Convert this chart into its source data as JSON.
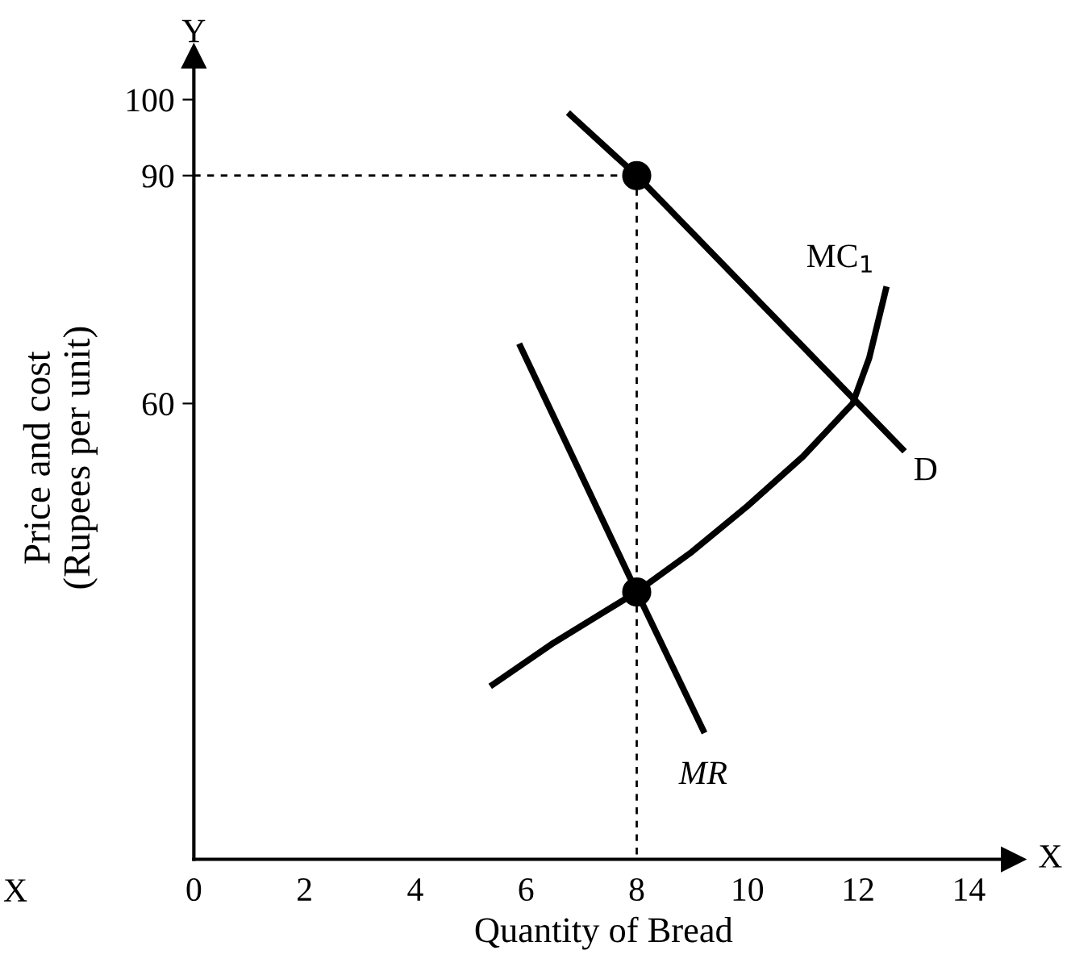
{
  "chart_data": {
    "type": "line",
    "xlabel": "Quantity of Bread",
    "ylabel": "Price and cost\n(Rupees per unit)",
    "xlim": [
      0,
      14.8
    ],
    "ylim": [
      0,
      105.7
    ],
    "xticks": [
      0,
      2,
      4,
      6,
      8,
      10,
      12,
      14
    ],
    "yticks": [
      60,
      90,
      100
    ],
    "grid": false,
    "legend": false,
    "series": [
      {
        "name": "D",
        "color": "#000000",
        "x": [
          6.8,
          8,
          12.8
        ],
        "values": [
          98,
          90,
          54
        ]
      },
      {
        "name": "MR",
        "color": "#000000",
        "x": [
          5.9,
          8,
          9.2
        ],
        "values": [
          67.5,
          35.2,
          17
        ]
      },
      {
        "name": "MC$_{1}$",
        "color": "#000000",
        "x": [
          5.4,
          6.5,
          8,
          9,
          10,
          11,
          11.9,
          12.2,
          12.5
        ],
        "values": [
          23,
          28.5,
          35.2,
          40.5,
          46.5,
          53,
          60,
          66,
          75
        ]
      },
      {
        "color": "#000000",
        "line_style": "dashed",
        "x": [
          0,
          8
        ],
        "values": [
          90,
          90
        ]
      },
      {
        "color": "#000000",
        "line_style": "dashed",
        "x": [
          8,
          8
        ],
        "values": [
          90,
          0
        ]
      },
      {
        "type": "scatter",
        "color": "#000000",
        "marker": "circle",
        "x": [
          8,
          8
        ],
        "values": [
          90,
          35.2
        ]
      }
    ],
    "annotations": [
      "Y",
      "X",
      "X"
    ]
  }
}
